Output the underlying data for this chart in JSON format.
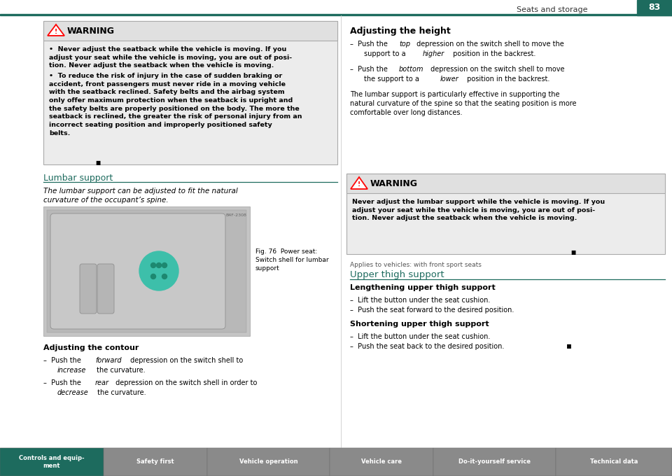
{
  "page_bg": "#ffffff",
  "header_line_color": "#1d6b5e",
  "teal_color": "#1d6b5e",
  "header_title": "Seats and storage",
  "page_number": "83",
  "warning_bg": "#ececec",
  "warning_header_bg": "#e0e0e0",
  "warning_border": "#aaaaaa",
  "tab_bar_bg": "#8a8a8a",
  "tab_active_bg": "#1d6b5e",
  "tab_labels": [
    "Controls and equip-\nment",
    "Safety first",
    "Vehicle operation",
    "Vehicle care",
    "Do-it-yourself service",
    "Technical data"
  ],
  "warning1_title": "WARNING",
  "warning1_b1": "Never adjust the seatback while the vehicle is moving. If you\nadjust your seat while the vehicle is moving, you are out of posi-\ntion. Never adjust the seatback when the vehicle is moving.",
  "warning1_b2": "To reduce the risk of injury in the case of sudden braking or\naccident, front passengers must never ride in a moving vehicle\nwith the seatback reclined. Safety belts and the airbag system\nonly offer maximum protection when the seatback is upright and\nthe safety belts are properly positioned on the body. The more the\nseatback is reclined, the greater the risk of personal injury from an\nincorrect seating position and improperly positioned safety\nbelts.",
  "lumbar_support_heading": "Lumbar support",
  "lumbar_italic": "The lumbar support can be adjusted to fit the natural\ncurvature of the occupant’s spine.",
  "fig_caption": "Fig. 76  Power seat:\nSwitch shell for lumbar\nsupport",
  "adj_contour_heading": "Adjusting the contour",
  "right_heading1": "Adjusting the height",
  "right_para": "The lumbar support is particularly effective in supporting the\nnatural curvature of the spine so that the seating position is more\ncomfortable over long distances.",
  "warning2_title": "WARNING",
  "warning2_text": "Never adjust the lumbar support while the vehicle is moving. If you\nadjust your seat while the vehicle is moving, you are out of posi-\ntion. Never adjust the seatback when the vehicle is moving.",
  "applies_text": "Applies to vehicles: with front sport seats",
  "upper_thigh_heading": "Upper thigh support",
  "lengthening_heading": "Lengthening upper thigh support",
  "shortening_heading": "Shortening upper thigh support"
}
